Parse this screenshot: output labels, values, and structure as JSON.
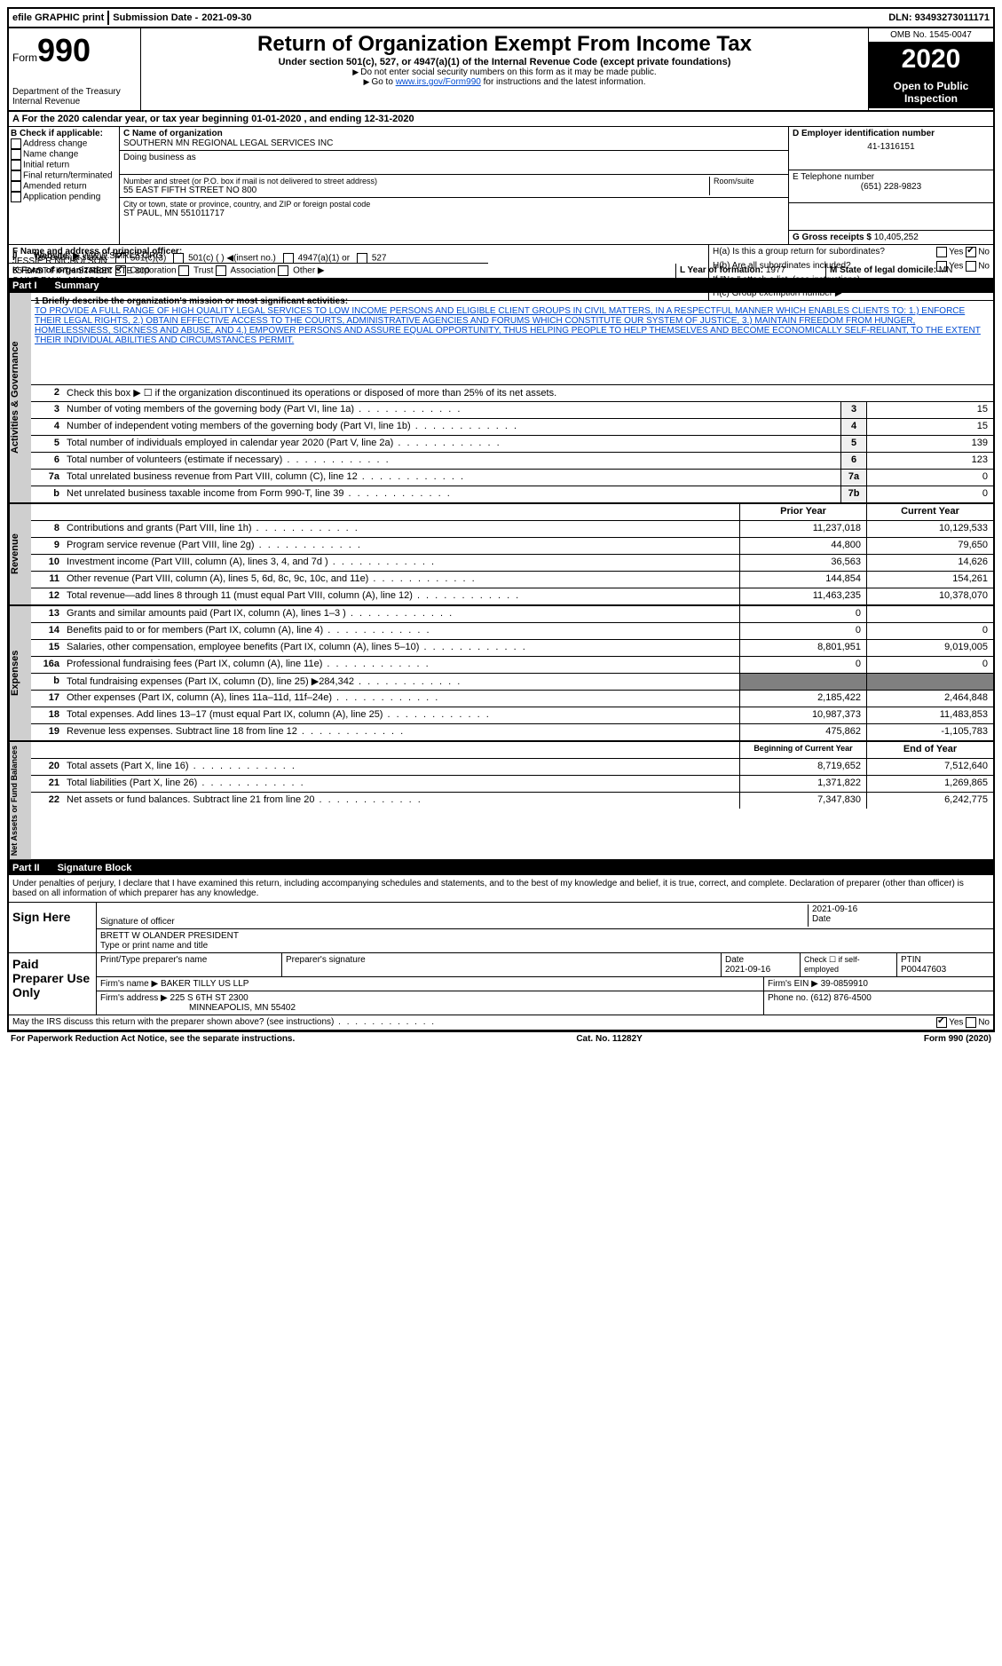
{
  "top": {
    "efile": "efile GRAPHIC print",
    "submission_label": "Submission Date - ",
    "submission_date": "2021-09-30",
    "dln_label": "DLN: ",
    "dln": "93493273011171"
  },
  "header": {
    "form_label": "Form",
    "form_num": "990",
    "dept": "Department of the Treasury",
    "irs": "Internal Revenue",
    "title": "Return of Organization Exempt From Income Tax",
    "subtitle": "Under section 501(c), 527, or 4947(a)(1) of the Internal Revenue Code (except private foundations)",
    "note1": "Do not enter social security numbers on this form as it may be made public.",
    "note2_pre": "Go to ",
    "note2_link": "www.irs.gov/Form990",
    "note2_post": " for instructions and the latest information.",
    "omb": "OMB No. 1545-0047",
    "year": "2020",
    "open": "Open to Public Inspection"
  },
  "row_a": "For the 2020 calendar year, or tax year beginning 01-01-2020   , and ending 12-31-2020",
  "box_b": {
    "title": "B Check if applicable:",
    "items": [
      "Address change",
      "Name change",
      "Initial return",
      "Final return/terminated",
      "Amended return",
      "Application pending"
    ]
  },
  "box_c": {
    "label_name": "C Name of organization",
    "org_name": "SOUTHERN MN REGIONAL LEGAL SERVICES INC",
    "dba": "Doing business as",
    "addr_label": "Number and street (or P.O. box if mail is not delivered to street address)",
    "room_label": "Room/suite",
    "addr": "55 EAST FIFTH STREET NO 800",
    "city_label": "City or town, state or province, country, and ZIP or foreign postal code",
    "city": "ST PAUL, MN  551011717"
  },
  "box_d": {
    "label": "D Employer identification number",
    "ein": "41-1316151",
    "phone_label": "E Telephone number",
    "phone": "(651) 228-9823",
    "gross_label": "G Gross receipts $ ",
    "gross": "10,405,252"
  },
  "box_f": {
    "label": "F  Name and address of principal officer:",
    "name": "JESSIE R NICHOLSON",
    "addr1": "55 EAST FIFTH STREET STE 800",
    "addr2": "SAINT PAUL, MN  55101"
  },
  "box_h": {
    "a": "H(a)  Is this a group return for subordinates?",
    "b": "H(b)  Are all subordinates included?",
    "note": "If \"No,\" attach a list. (see instructions)",
    "c": "H(c)  Group exemption number ▶"
  },
  "row_i": {
    "label": "Tax-exempt status:",
    "opts": [
      "501(c)(3)",
      "501(c) (  ) ◀(insert no.)",
      "4947(a)(1) or",
      "527"
    ]
  },
  "row_j": {
    "label": "Website: ▶",
    "val": "WWW.SMRLS.ORG"
  },
  "row_k": {
    "label": "K Form of organization:",
    "opts": [
      "Corporation",
      "Trust",
      "Association",
      "Other ▶"
    ],
    "l_label": "L Year of formation: ",
    "l_val": "1977",
    "m_label": "M State of legal domicile: ",
    "m_val": "MN"
  },
  "part1": {
    "num": "Part I",
    "title": "Summary"
  },
  "mission": {
    "label": "1   Briefly describe the organization's mission or most significant activities:",
    "text": "TO PROVIDE A FULL RANGE OF HIGH QUALITY LEGAL SERVICES TO LOW INCOME PERSONS AND ELIGIBLE CLIENT GROUPS IN CIVIL MATTERS, IN A RESPECTFUL MANNER WHICH ENABLES CLIENTS TO: 1.) ENFORCE THEIR LEGAL RIGHTS, 2.) OBTAIN EFFECTIVE ACCESS TO THE COURTS, ADMINISTRATIVE AGENCIES AND FORUMS WHICH CONSTITUTE OUR SYSTEM OF JUSTICE, 3.) MAINTAIN FREEDOM FROM HUNGER, HOMELESSNESS, SICKNESS AND ABUSE, AND 4.) EMPOWER PERSONS AND ASSURE EQUAL OPPORTUNITY, THUS HELPING PEOPLE TO HELP THEMSELVES AND BECOME ECONOMICALLY SELF-RELIANT, TO THE EXTENT THEIR INDIVIDUAL ABILITIES AND CIRCUMSTANCES PERMIT."
  },
  "gov_lines": [
    {
      "n": "2",
      "t": "Check this box ▶ ☐  if the organization discontinued its operations or disposed of more than 25% of its net assets."
    },
    {
      "n": "3",
      "t": "Number of voting members of the governing body (Part VI, line 1a)",
      "b": "3",
      "v": "15"
    },
    {
      "n": "4",
      "t": "Number of independent voting members of the governing body (Part VI, line 1b)",
      "b": "4",
      "v": "15"
    },
    {
      "n": "5",
      "t": "Total number of individuals employed in calendar year 2020 (Part V, line 2a)",
      "b": "5",
      "v": "139"
    },
    {
      "n": "6",
      "t": "Total number of volunteers (estimate if necessary)",
      "b": "6",
      "v": "123"
    },
    {
      "n": "7a",
      "t": "Total unrelated business revenue from Part VIII, column (C), line 12",
      "b": "7a",
      "v": "0"
    },
    {
      "n": "b",
      "t": "Net unrelated business taxable income from Form 990-T, line 39",
      "b": "7b",
      "v": "0"
    }
  ],
  "rev_header": {
    "prior": "Prior Year",
    "current": "Current Year"
  },
  "rev_lines": [
    {
      "n": "8",
      "t": "Contributions and grants (Part VIII, line 1h)",
      "p": "11,237,018",
      "c": "10,129,533"
    },
    {
      "n": "9",
      "t": "Program service revenue (Part VIII, line 2g)",
      "p": "44,800",
      "c": "79,650"
    },
    {
      "n": "10",
      "t": "Investment income (Part VIII, column (A), lines 3, 4, and 7d )",
      "p": "36,563",
      "c": "14,626"
    },
    {
      "n": "11",
      "t": "Other revenue (Part VIII, column (A), lines 5, 6d, 8c, 9c, 10c, and 11e)",
      "p": "144,854",
      "c": "154,261"
    },
    {
      "n": "12",
      "t": "Total revenue—add lines 8 through 11 (must equal Part VIII, column (A), line 12)",
      "p": "11,463,235",
      "c": "10,378,070"
    }
  ],
  "exp_lines": [
    {
      "n": "13",
      "t": "Grants and similar amounts paid (Part IX, column (A), lines 1–3 )",
      "p": "0",
      "c": ""
    },
    {
      "n": "14",
      "t": "Benefits paid to or for members (Part IX, column (A), line 4)",
      "p": "0",
      "c": "0"
    },
    {
      "n": "15",
      "t": "Salaries, other compensation, employee benefits (Part IX, column (A), lines 5–10)",
      "p": "8,801,951",
      "c": "9,019,005"
    },
    {
      "n": "16a",
      "t": "Professional fundraising fees (Part IX, column (A), line 11e)",
      "p": "0",
      "c": "0"
    },
    {
      "n": "b",
      "t": "Total fundraising expenses (Part IX, column (D), line 25) ▶284,342",
      "p": "",
      "c": "",
      "shaded": true
    },
    {
      "n": "17",
      "t": "Other expenses (Part IX, column (A), lines 11a–11d, 11f–24e)",
      "p": "2,185,422",
      "c": "2,464,848"
    },
    {
      "n": "18",
      "t": "Total expenses. Add lines 13–17 (must equal Part IX, column (A), line 25)",
      "p": "10,987,373",
      "c": "11,483,853"
    },
    {
      "n": "19",
      "t": "Revenue less expenses. Subtract line 18 from line 12",
      "p": "475,862",
      "c": "-1,105,783"
    }
  ],
  "net_header": {
    "prior": "Beginning of Current Year",
    "current": "End of Year"
  },
  "net_lines": [
    {
      "n": "20",
      "t": "Total assets (Part X, line 16)",
      "p": "8,719,652",
      "c": "7,512,640"
    },
    {
      "n": "21",
      "t": "Total liabilities (Part X, line 26)",
      "p": "1,371,822",
      "c": "1,269,865"
    },
    {
      "n": "22",
      "t": "Net assets or fund balances. Subtract line 21 from line 20",
      "p": "7,347,830",
      "c": "6,242,775"
    }
  ],
  "side_labels": {
    "gov": "Activities & Governance",
    "rev": "Revenue",
    "exp": "Expenses",
    "net": "Net Assets or Fund Balances"
  },
  "part2": {
    "num": "Part II",
    "title": "Signature Block"
  },
  "sig": {
    "penalty": "Under penalties of perjury, I declare that I have examined this return, including accompanying schedules and statements, and to the best of my knowledge and belief, it is true, correct, and complete. Declaration of preparer (other than officer) is based on all information of which preparer has any knowledge.",
    "sign_here": "Sign Here",
    "sig_officer": "Signature of officer",
    "date": "Date",
    "sig_date": "2021-09-16",
    "name_title": "BRETT W OLANDER  PRESIDENT",
    "type_name": "Type or print name and title"
  },
  "prep": {
    "label": "Paid Preparer Use Only",
    "h_name": "Print/Type preparer's name",
    "h_sig": "Preparer's signature",
    "h_date": "Date",
    "date": "2021-09-16",
    "h_check": "Check ☐ if self-employed",
    "h_ptin": "PTIN",
    "ptin": "P00447603",
    "firm_name_l": "Firm's name    ▶",
    "firm_name": "BAKER TILLY US LLP",
    "firm_ein_l": "Firm's EIN ▶",
    "firm_ein": "39-0859910",
    "firm_addr_l": "Firm's address ▶",
    "firm_addr1": "225 S 6TH ST 2300",
    "firm_addr2": "MINNEAPOLIS, MN  55402",
    "phone_l": "Phone no. ",
    "phone": "(612) 876-4500"
  },
  "discuss": "May the IRS discuss this return with the preparer shown above? (see instructions)",
  "footer": {
    "left": "For Paperwork Reduction Act Notice, see the separate instructions.",
    "mid": "Cat. No. 11282Y",
    "right": "Form 990 (2020)"
  }
}
